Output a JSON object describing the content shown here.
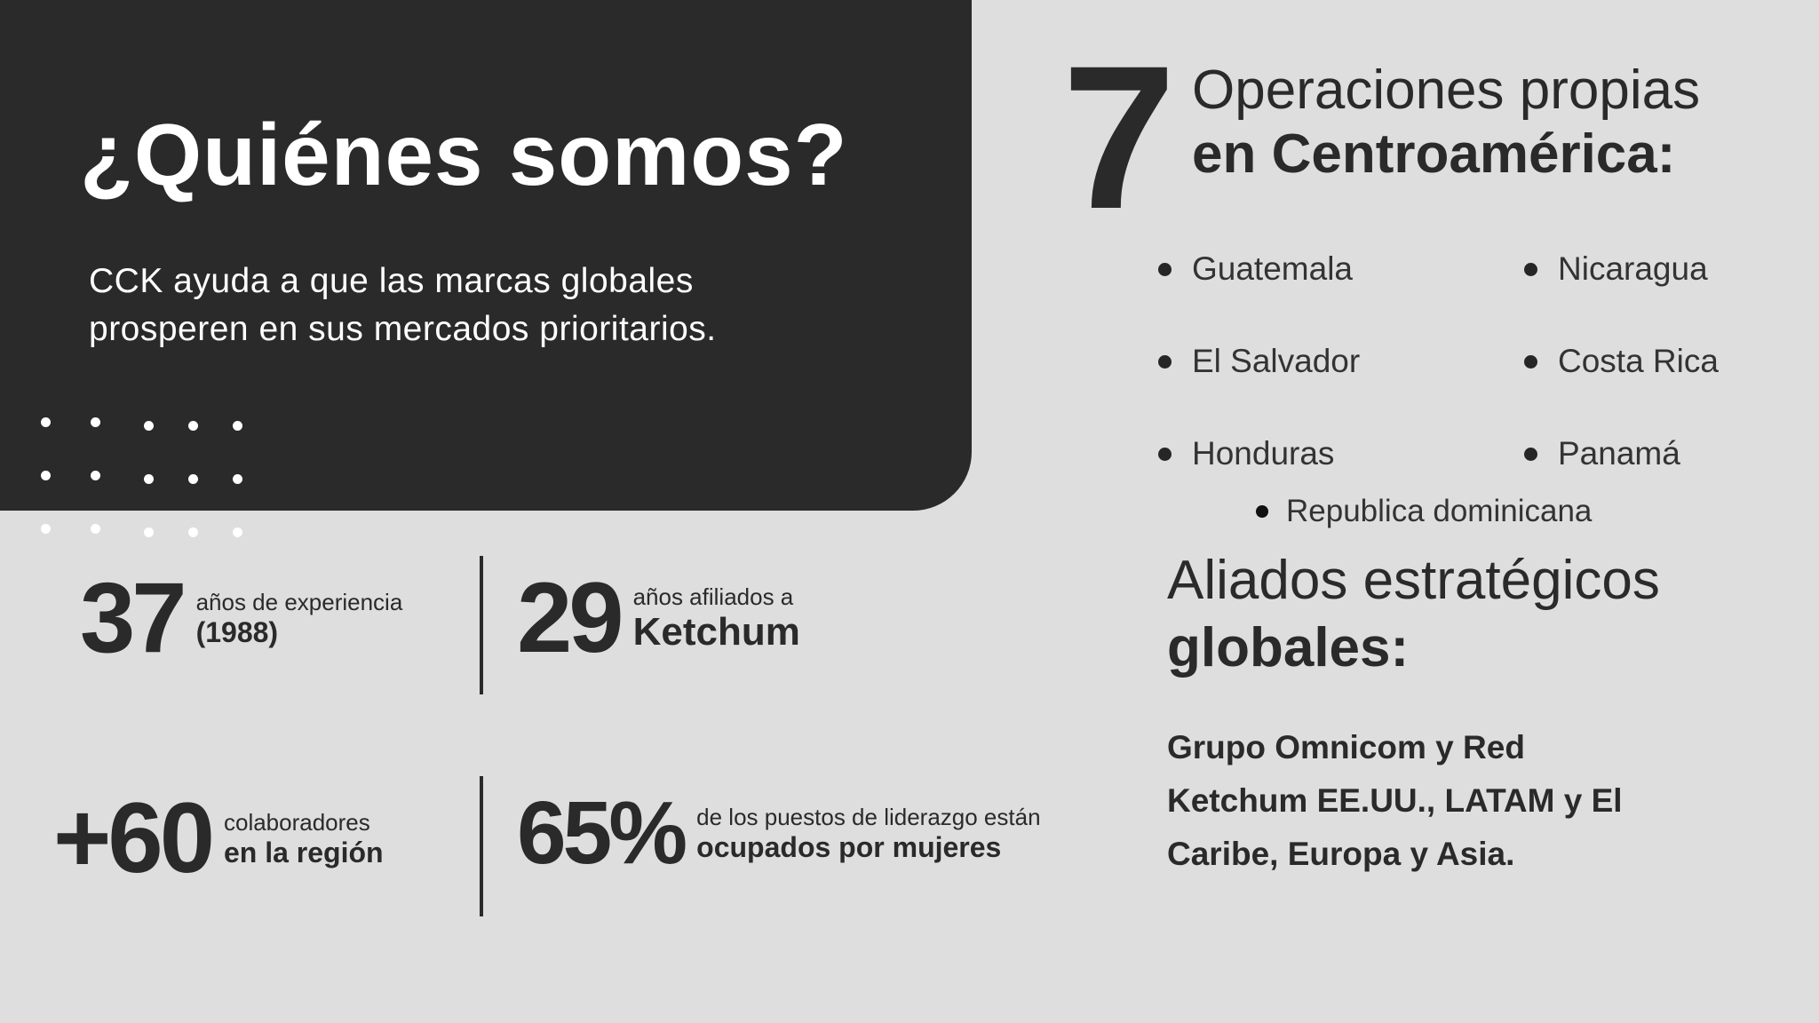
{
  "hero": {
    "title": "¿Quiénes somos?",
    "subtitle_line1": "CCK  ayuda a que las marcas globales",
    "subtitle_line2": "prosperen en sus mercados prioritarios."
  },
  "stats": [
    {
      "number": "37",
      "line1": "años de experiencia",
      "line2": "(1988)"
    },
    {
      "number": "29",
      "line1": "años afiliados a",
      "line2": "Ketchum"
    },
    {
      "number": "+60",
      "line1": "colaboradores",
      "line2": "en la región"
    },
    {
      "number": "65%",
      "line1": "de los puestos de liderazgo están",
      "line2": "ocupados por mujeres"
    }
  ],
  "operations": {
    "count": "7",
    "title_line1": "Operaciones propias",
    "title_line2": "en Centroamérica:",
    "countries": [
      "Guatemala",
      "El Salvador",
      "Honduras",
      "Nicaragua",
      "Costa Rica",
      "Panamá",
      "Republica dominicana"
    ]
  },
  "allies": {
    "title_line1": "Aliados estratégicos",
    "title_line2": "globales:",
    "text_line1": "Grupo Omnicom y Red",
    "text_line2": "Ketchum EE.UU., LATAM y El",
    "text_line3": "Caribe, Europa y Asia."
  },
  "colors": {
    "dark_panel": "#2a2a2b",
    "background": "#dedede",
    "text_dark": "#2a2a2a"
  }
}
